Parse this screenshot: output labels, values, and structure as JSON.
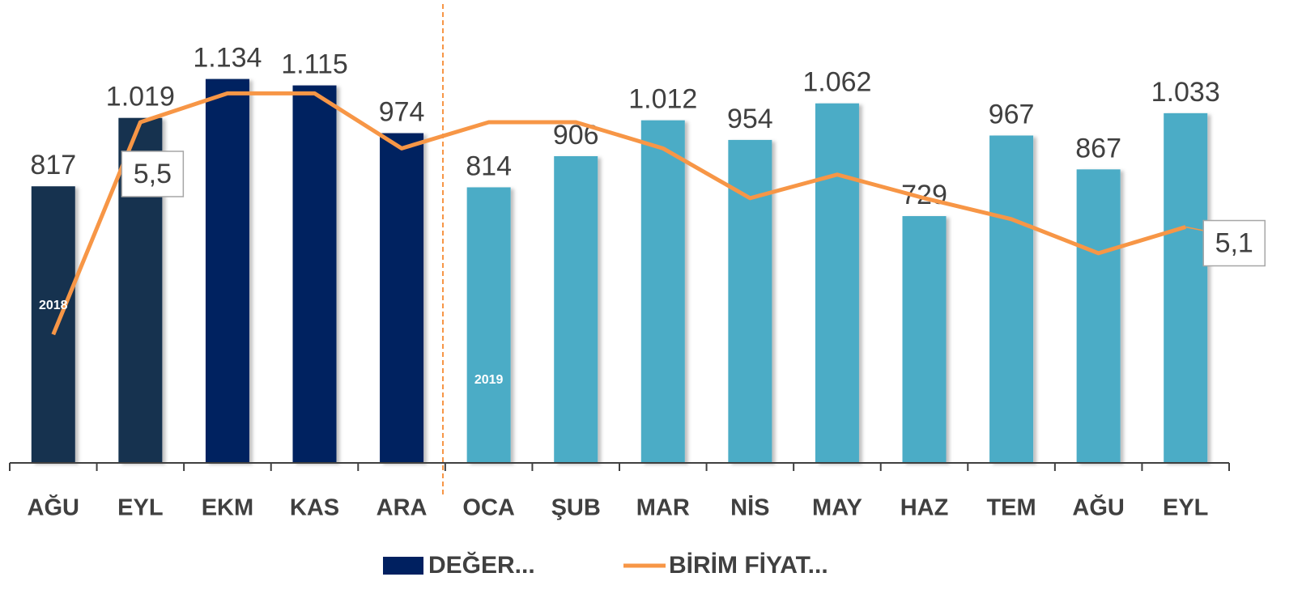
{
  "chart_data": {
    "type": "bar",
    "categories": [
      "AĞU",
      "EYL",
      "EKM",
      "KAS",
      "ARA",
      "OCA",
      "ŞUB",
      "MAR",
      "NİS",
      "MAY",
      "HAZ",
      "TEM",
      "AĞU",
      "EYL"
    ],
    "series": [
      {
        "name": "DEĞER...",
        "type": "bar",
        "color": "#002060",
        "colors": [
          "#14304f",
          "#14304f",
          "#002060",
          "#002060",
          "#002060",
          "#4bacc6",
          "#4bacc6",
          "#4bacc6",
          "#4bacc6",
          "#4bacc6",
          "#4bacc6",
          "#4bacc6",
          "#4bacc6",
          "#4bacc6"
        ],
        "values": [
          817,
          1019,
          1134,
          1115,
          974,
          814,
          906,
          1012,
          954,
          1062,
          729,
          967,
          867,
          1033
        ],
        "value_labels": [
          "817",
          "1.019",
          "1.134",
          "1.115",
          "974",
          "814",
          "906",
          "1.012",
          "954",
          "1.062",
          "729",
          "967",
          "867",
          "1.033"
        ]
      },
      {
        "name": "BİRİM FİYAT...",
        "type": "line",
        "axis": "y2",
        "color": "#f79646",
        "values": [
          4.69,
          5.5,
          5.61,
          5.61,
          5.4,
          5.5,
          5.5,
          5.4,
          5.21,
          5.3,
          5.21,
          5.13,
          5.0,
          5.1
        ],
        "value_labels": [
          null,
          "5,5",
          null,
          null,
          null,
          null,
          null,
          null,
          null,
          null,
          null,
          null,
          null,
          "5,1"
        ]
      }
    ],
    "annotations": [
      "2018",
      "2019"
    ],
    "ylim": [
      0,
      1200
    ],
    "y2lim": [
      4.2,
      5.75
    ],
    "legend": "bottom"
  }
}
